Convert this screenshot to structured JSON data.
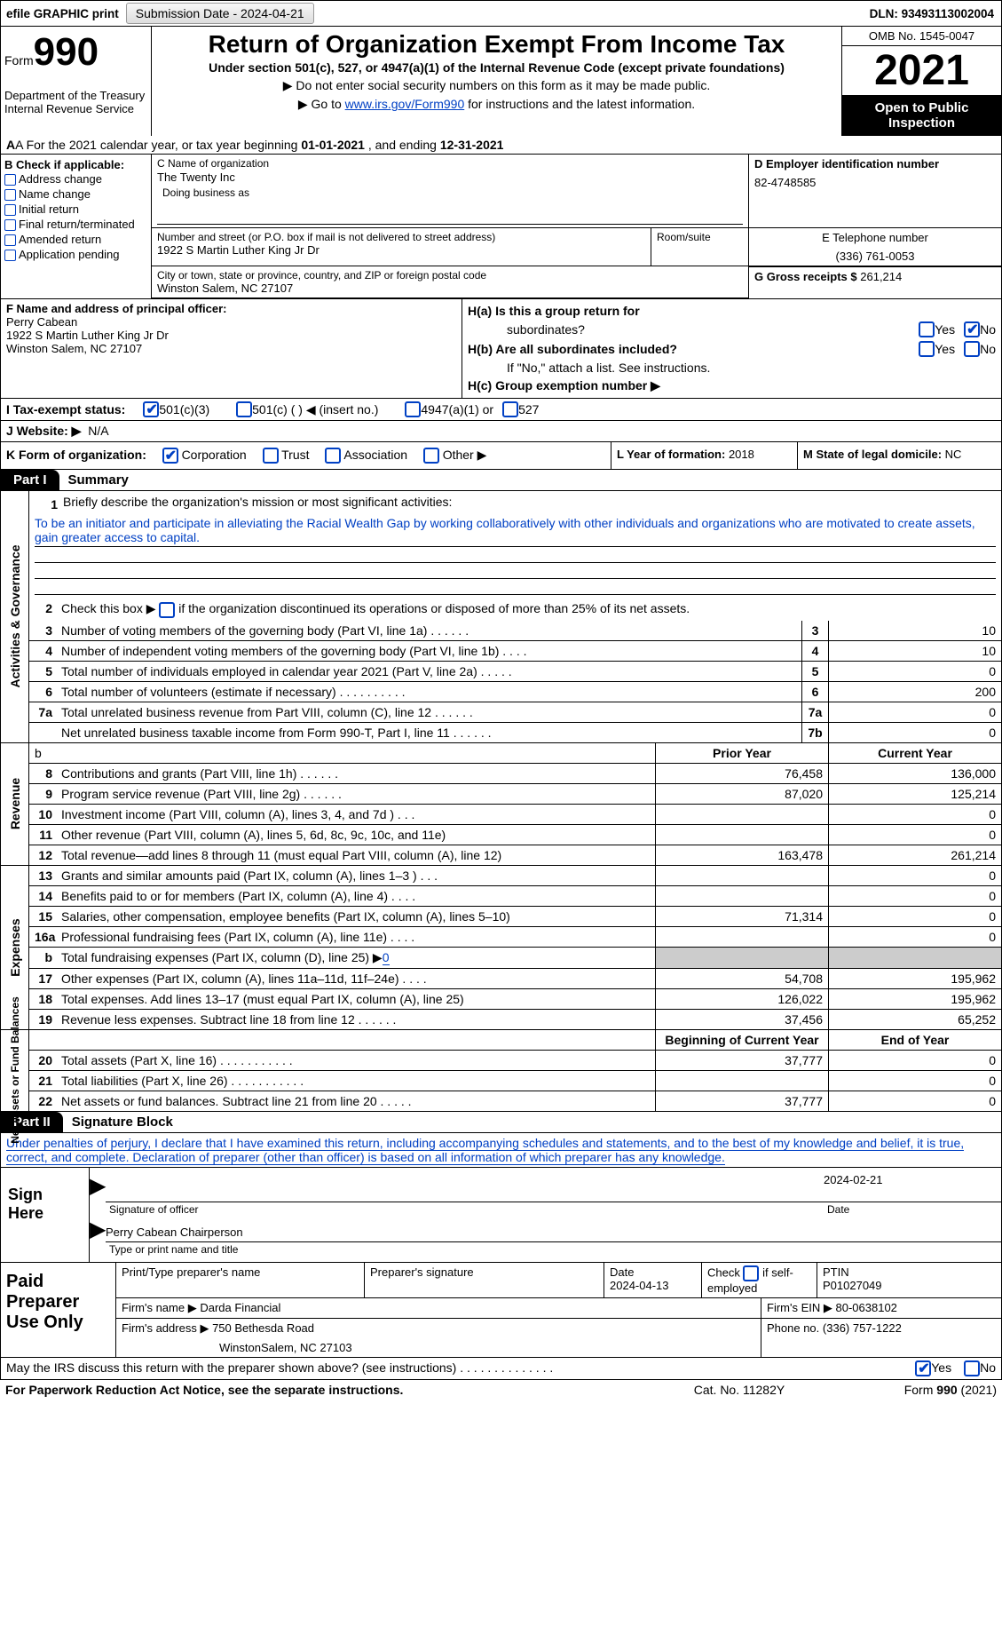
{
  "top": {
    "efile": "efile GRAPHIC print",
    "sub_label": "Submission Date - 2024-04-21",
    "dln": "DLN: 93493113002004"
  },
  "header": {
    "form_word": "Form",
    "form_num": "990",
    "dept1": "Department of the Treasury",
    "dept2": "Internal Revenue Service",
    "title": "Return of Organization Exempt From Income Tax",
    "sub": "Under section 501(c), 527, or 4947(a)(1) of the Internal Revenue Code (except private foundations)",
    "note1": "▶ Do not enter social security numbers on this form as it may be made public.",
    "note2_pre": "▶ Go to ",
    "note2_link": "www.irs.gov/Form990",
    "note2_post": " for instructions and the latest information.",
    "omb": "OMB No. 1545-0047",
    "year": "2021",
    "inspect1": "Open to Public",
    "inspect2": "Inspection"
  },
  "rowA": {
    "pre": "A For the 2021 calendar year, or tax year beginning ",
    "b": "01-01-2021",
    "mid": "  , and ending ",
    "e": "12-31-2021"
  },
  "B": {
    "title": "B Check if applicable:",
    "opts": [
      "Address change",
      "Name change",
      "Initial return",
      "Final return/terminated",
      "Amended return",
      "Application pending"
    ]
  },
  "C": {
    "name_lab": "C Name of organization",
    "name": "The Twenty Inc",
    "dba_lab": "Doing business as",
    "street_lab": "Number and street (or P.O. box if mail is not delivered to street address)",
    "street": "1922 S Martin Luther King Jr Dr",
    "room_lab": "Room/suite",
    "city_lab": "City or town, state or province, country, and ZIP or foreign postal code",
    "city": "Winston Salem, NC  27107"
  },
  "D": {
    "lab": "D Employer identification number",
    "val": "82-4748585"
  },
  "E": {
    "lab": "E Telephone number",
    "val": "(336) 761-0053"
  },
  "G": {
    "lab": "G Gross receipts $",
    "val": "261,214"
  },
  "F": {
    "lab": "F  Name and address of principal officer:",
    "name": "Perry Cabean",
    "addr1": "1922 S Martin Luther King Jr Dr",
    "addr2": "Winston Salem, NC  27107"
  },
  "H": {
    "a": "H(a)  Is this a group return for",
    "a2": "subordinates?",
    "b": "H(b)  Are all subordinates included?",
    "bnote": "If \"No,\" attach a list. See instructions.",
    "c": "H(c)  Group exemption number ▶",
    "yes": "Yes",
    "no": "No"
  },
  "I": {
    "lab": "I   Tax-exempt status:",
    "o1": "501(c)(3)",
    "o2": "501(c) (  ) ◀ (insert no.)",
    "o3": "4947(a)(1) or",
    "o4": "527"
  },
  "J": {
    "lab": "J  Website: ▶",
    "val": "N/A"
  },
  "K": {
    "lab": "K Form of organization:",
    "o1": "Corporation",
    "o2": "Trust",
    "o3": "Association",
    "o4": "Other ▶"
  },
  "L": {
    "lab": "L Year of formation:",
    "val": "2018"
  },
  "M": {
    "lab": "M State of legal domicile:",
    "val": "NC"
  },
  "parts": {
    "p1_tab": "Part I",
    "p1_title": "Summary",
    "p2_tab": "Part II",
    "p2_title": "Signature Block"
  },
  "summary": {
    "side1": "Activities & Governance",
    "side2": "Revenue",
    "side3": "Expenses",
    "side4": "Net Assets or Fund Balances",
    "q1": "Briefly describe the organization's mission or most significant activities:",
    "mission": "To be an initiator and participate in alleviating the Racial Wealth Gap by working collaboratively with other individuals and organizations who are motivated to create assets, gain greater access to capital.",
    "q2_a": "Check this box ▶",
    "q2_b": "if the organization discontinued its operations or disposed of more than 25% of its net assets.",
    "lines_gov": [
      {
        "n": "3",
        "t": "Number of voting members of the governing body (Part VI, line 1a)   .     .     .     .     .     .",
        "b": "3",
        "v": "10"
      },
      {
        "n": "4",
        "t": "Number of independent voting members of the governing body (Part VI, line 1b)   .     .     .     .",
        "b": "4",
        "v": "10"
      },
      {
        "n": "5",
        "t": "Total number of individuals employed in calendar year 2021 (Part V, line 2a)   .     .     .     .     .",
        "b": "5",
        "v": "0"
      },
      {
        "n": "6",
        "t": "Total number of volunteers (estimate if necessary)    .     .     .     .     .     .     .     .     .     .",
        "b": "6",
        "v": "200"
      },
      {
        "n": "7a",
        "t": "Total unrelated business revenue from Part VIII, column (C), line 12    .     .     .     .     .     .",
        "b": "7a",
        "v": "0"
      },
      {
        "n": "",
        "t": "Net unrelated business taxable income from Form 990-T, Part I, line 11   .     .     .     .     .     .",
        "b": "7b",
        "v": "0"
      }
    ],
    "hdr_b": "b",
    "hdr_prior": "Prior Year",
    "hdr_current": "Current Year",
    "rev": [
      {
        "n": "8",
        "t": "Contributions and grants (Part VIII, line 1h)   .     .     .     .     .     .",
        "p": "76,458",
        "c": "136,000"
      },
      {
        "n": "9",
        "t": "Program service revenue (Part VIII, line 2g)   .     .     .     .     .     .",
        "p": "87,020",
        "c": "125,214"
      },
      {
        "n": "10",
        "t": "Investment income (Part VIII, column (A), lines 3, 4, and 7d )   .     .     .",
        "p": "",
        "c": "0"
      },
      {
        "n": "11",
        "t": "Other revenue (Part VIII, column (A), lines 5, 6d, 8c, 9c, 10c, and 11e)",
        "p": "",
        "c": "0"
      },
      {
        "n": "12",
        "t": "Total revenue—add lines 8 through 11 (must equal Part VIII, column (A), line 12)",
        "p": "163,478",
        "c": "261,214"
      }
    ],
    "exp": [
      {
        "n": "13",
        "t": "Grants and similar amounts paid (Part IX, column (A), lines 1–3 )   .     .     .",
        "p": "",
        "c": "0"
      },
      {
        "n": "14",
        "t": "Benefits paid to or for members (Part IX, column (A), line 4)   .     .     .     .",
        "p": "",
        "c": "0"
      },
      {
        "n": "15",
        "t": "Salaries, other compensation, employee benefits (Part IX, column (A), lines 5–10)",
        "p": "71,314",
        "c": "0"
      },
      {
        "n": "16a",
        "t": "Professional fundraising fees (Part IX, column (A), line 11e)   .     .     .     .",
        "p": "",
        "c": "0"
      }
    ],
    "line_b": {
      "n": "b",
      "t": "Total fundraising expenses (Part IX, column (D), line 25) ▶",
      "v": "0"
    },
    "exp2": [
      {
        "n": "17",
        "t": "Other expenses (Part IX, column (A), lines 11a–11d, 11f–24e)   .     .     .     .",
        "p": "54,708",
        "c": "195,962"
      },
      {
        "n": "18",
        "t": "Total expenses. Add lines 13–17 (must equal Part IX, column (A), line 25)",
        "p": "126,022",
        "c": "195,962"
      },
      {
        "n": "19",
        "t": "Revenue less expenses. Subtract line 18 from line 12   .     .     .     .     .     .",
        "p": "37,456",
        "c": "65,252"
      }
    ],
    "hdr_beg": "Beginning of Current Year",
    "hdr_end": "End of Year",
    "net": [
      {
        "n": "20",
        "t": "Total assets (Part X, line 16)   .     .     .     .     .     .     .     .     .     .     .",
        "p": "37,777",
        "c": "0"
      },
      {
        "n": "21",
        "t": "Total liabilities (Part X, line 26)   .     .     .     .     .     .     .     .     .     .     .",
        "p": "",
        "c": "0"
      },
      {
        "n": "22",
        "t": "Net assets or fund balances. Subtract line 21 from line 20   .     .     .     .     .",
        "p": "37,777",
        "c": "0"
      }
    ]
  },
  "sig": {
    "intro": "Under penalties of perjury, I declare that I have examined this return, including accompanying schedules and statements, and to the best of my knowledge and belief, it is true, correct, and complete. Declaration of preparer (other than officer) is based on all information of which preparer has any knowledge.",
    "sign_here": "Sign Here",
    "sig_officer": "Signature of officer",
    "date": "Date",
    "date_val": "2024-02-21",
    "name_val": "Perry Cabean  Chairperson",
    "type_name": "Type or print name and title"
  },
  "paid": {
    "left": "Paid Preparer Use Only",
    "h1": "Print/Type preparer's name",
    "h2": "Preparer's signature",
    "h3_l": "Date",
    "h3_v": "2024-04-13",
    "h4_l": "Check",
    "h4_l2": "if self-employed",
    "h5_l": "PTIN",
    "h5_v": "P01027049",
    "firm_name_l": "Firm's name    ▶",
    "firm_name": "Darda Financial",
    "firm_ein_l": "Firm's EIN ▶",
    "firm_ein": "80-0638102",
    "firm_addr_l": "Firm's address ▶",
    "firm_addr1": "750 Bethesda Road",
    "firm_addr2": "WinstonSalem, NC  27103",
    "phone_l": "Phone no.",
    "phone": "(336) 757-1222"
  },
  "footerq": {
    "t": "May the IRS discuss this return with the preparer shown above? (see instructions)   .     .     .     .     .     .     .     .     .     .     .     .     .     .",
    "yes": "Yes",
    "no": "No"
  },
  "footer": {
    "l": "For Paperwork Reduction Act Notice, see the separate instructions.",
    "m": "Cat. No. 11282Y",
    "r": "Form 990 (2021)"
  }
}
